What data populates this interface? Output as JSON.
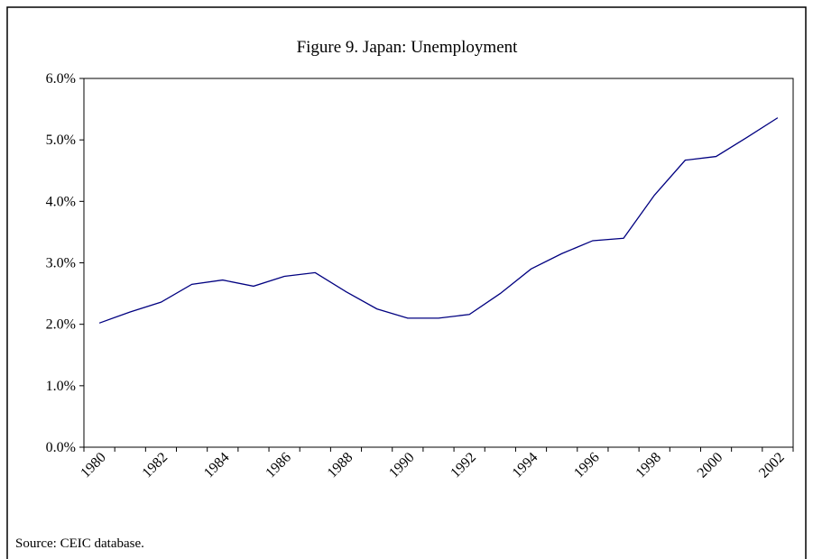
{
  "chart_data": {
    "type": "line",
    "title": "Figure 9. Japan: Unemployment",
    "note": "Source: CEIC database.",
    "categories": [
      "1980",
      null,
      "1982",
      null,
      "1984",
      null,
      "1986",
      null,
      "1988",
      null,
      "1990",
      null,
      "1992",
      null,
      "1994",
      null,
      "1996",
      null,
      "1998",
      null,
      "2000",
      null,
      "2002"
    ],
    "series": [
      {
        "name": "Unemployment",
        "color": "#000080",
        "values": [
          2.02,
          2.2,
          2.36,
          2.65,
          2.72,
          2.62,
          2.78,
          2.84,
          2.53,
          2.25,
          2.1,
          2.1,
          2.16,
          2.5,
          2.9,
          3.15,
          3.36,
          3.4,
          4.1,
          4.67,
          4.73,
          5.04,
          5.36
        ]
      }
    ],
    "ylim": [
      0,
      6
    ],
    "yticks": [
      {
        "value": 0,
        "label": "0.0%"
      },
      {
        "value": 1,
        "label": "1.0%"
      },
      {
        "value": 2,
        "label": "2.0%"
      },
      {
        "value": 3,
        "label": "3.0%"
      },
      {
        "value": 4,
        "label": "4.0%"
      },
      {
        "value": 5,
        "label": "5.0%"
      },
      {
        "value": 6,
        "label": "6.0%"
      }
    ],
    "grid": false
  }
}
